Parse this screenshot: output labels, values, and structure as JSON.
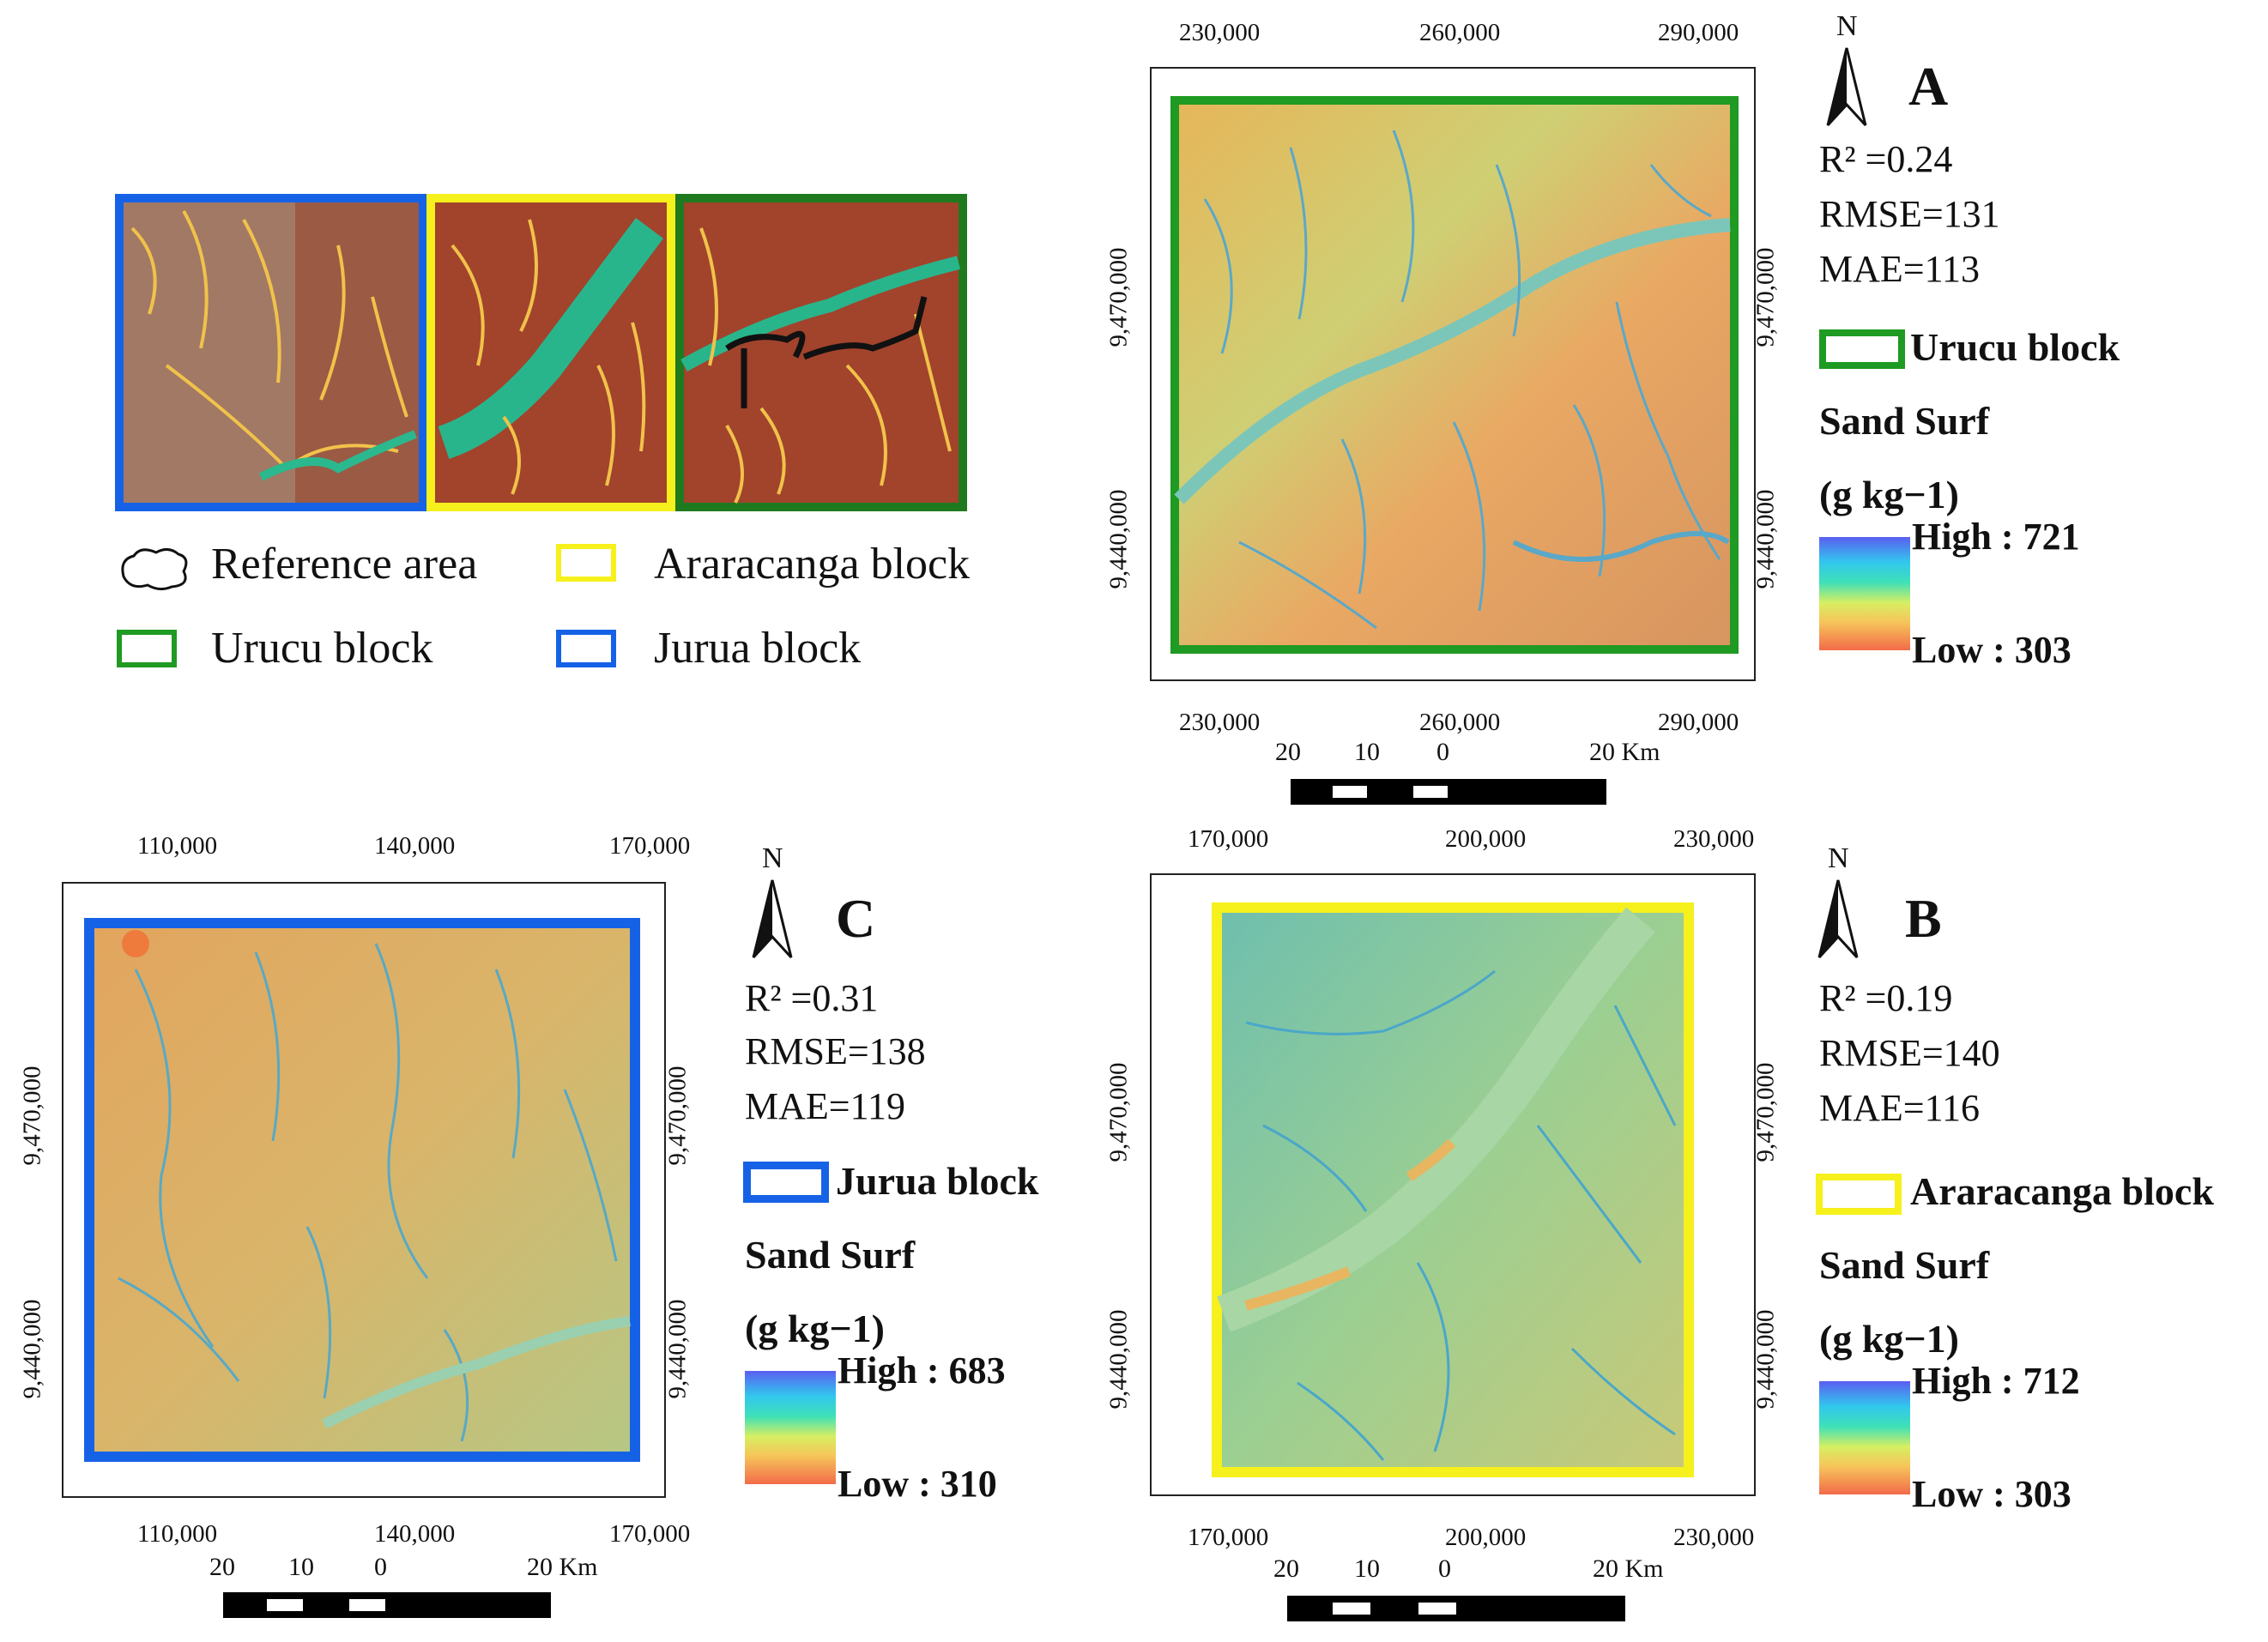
{
  "overview": {
    "legend": {
      "reference": "Reference area",
      "araracanga": "Araracanga block",
      "urucu": "Urucu block",
      "jurua": "Jurua block"
    },
    "colors": {
      "jurua": "#1662e6",
      "araracanga": "#f6f01c",
      "urucu": "#1f9a22"
    }
  },
  "panelA": {
    "letter": "A",
    "north": "N",
    "r2": "R² =0.24",
    "rmse": "RMSE=131",
    "mae": "MAE=113",
    "block": "Urucu block",
    "var": "Sand Surf",
    "unit": "(g kg−1)",
    "high": "High : 721",
    "low": "Low : 303",
    "xticks": [
      "230,000",
      "260,000",
      "290,000"
    ],
    "yticks": [
      "9,470,000",
      "9,440,000"
    ],
    "scale": {
      "l1": "20",
      "l2": "10",
      "l3": "0",
      "l4": "20 Km"
    }
  },
  "panelB": {
    "letter": "B",
    "north": "N",
    "r2": "R² =0.19",
    "rmse": "RMSE=140",
    "mae": "MAE=116",
    "block": "Araracanga block",
    "var": "Sand Surf",
    "unit": "(g kg−1)",
    "high": "High : 712",
    "low": "Low : 303",
    "xticks": [
      "170,000",
      "200,000",
      "230,000"
    ],
    "yticks": [
      "9,470,000",
      "9,440,000"
    ],
    "scale": {
      "l1": "20",
      "l2": "10",
      "l3": "0",
      "l4": "20 Km"
    }
  },
  "panelC": {
    "letter": "C",
    "north": "N",
    "r2": "R² =0.31",
    "rmse": "RMSE=138",
    "mae": "MAE=119",
    "block": "Jurua block",
    "var": "Sand Surf",
    "unit": "(g kg−1)",
    "high": "High : 683",
    "low": "Low : 310",
    "xticks": [
      "110,000",
      "140,000",
      "170,000"
    ],
    "yticks": [
      "9,470,000",
      "9,440,000"
    ],
    "scale": {
      "l1": "20",
      "l2": "10",
      "l3": "0",
      "l4": "20 Km"
    }
  }
}
